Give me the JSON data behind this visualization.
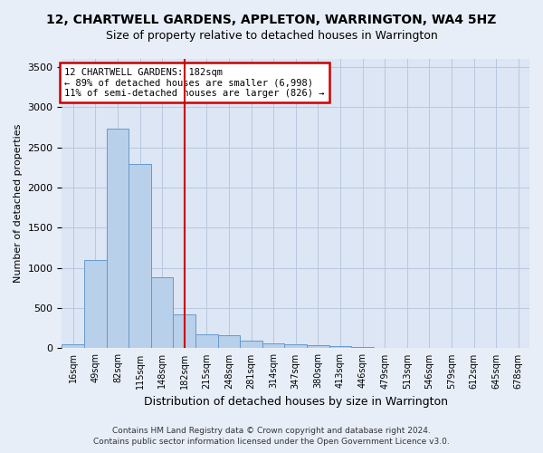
{
  "title": "12, CHARTWELL GARDENS, APPLETON, WARRINGTON, WA4 5HZ",
  "subtitle": "Size of property relative to detached houses in Warrington",
  "xlabel": "Distribution of detached houses by size in Warrington",
  "ylabel": "Number of detached properties",
  "categories": [
    "16sqm",
    "49sqm",
    "82sqm",
    "115sqm",
    "148sqm",
    "182sqm",
    "215sqm",
    "248sqm",
    "281sqm",
    "314sqm",
    "347sqm",
    "380sqm",
    "413sqm",
    "446sqm",
    "479sqm",
    "513sqm",
    "546sqm",
    "579sqm",
    "612sqm",
    "645sqm",
    "678sqm"
  ],
  "values": [
    55,
    1100,
    2730,
    2290,
    880,
    420,
    170,
    160,
    95,
    60,
    55,
    35,
    25,
    20,
    10,
    0,
    0,
    0,
    0,
    0,
    0
  ],
  "bar_color": "#b8d0ea",
  "bar_edge_color": "#6699cc",
  "vline_index": 5,
  "vline_color": "#cc0000",
  "ylim": [
    0,
    3600
  ],
  "yticks": [
    0,
    500,
    1000,
    1500,
    2000,
    2500,
    3000,
    3500
  ],
  "annotation_text": "12 CHARTWELL GARDENS: 182sqm\n← 89% of detached houses are smaller (6,998)\n11% of semi-detached houses are larger (826) →",
  "annotation_box_color": "#cc0000",
  "footer_line1": "Contains HM Land Registry data © Crown copyright and database right 2024.",
  "footer_line2": "Contains public sector information licensed under the Open Government Licence v3.0.",
  "bg_color": "#e8eef8",
  "plot_bg_color": "#dce6f5",
  "grid_color": "#b8c8de",
  "title_fontsize": 10,
  "subtitle_fontsize": 9
}
